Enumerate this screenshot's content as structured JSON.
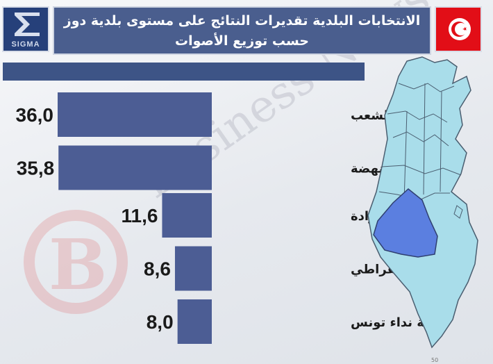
{
  "header": {
    "logo_text": "SIGMA",
    "title_line1": "الانتخابات البلدية تقديرات النتائج على مستوى بلدية دوز",
    "title_line2": "حسب توزيع الأصوات"
  },
  "watermark": {
    "text": "Business News"
  },
  "page_number": "50",
  "colors": {
    "bar": "#4c5d94",
    "header": "#4a5e8e",
    "flag_red": "#e20e17",
    "map_fill": "#a9ddea",
    "map_highlight": "#5b7fe0"
  },
  "chart_data": {
    "type": "bar",
    "orientation": "horizontal",
    "categories": [
      "حركة الشعب",
      "حركة النهضة",
      "حراك تونس الإرادة",
      "التيار الديمقراطي",
      "حركة نداء تونس"
    ],
    "values": [
      36.0,
      35.8,
      11.6,
      8.6,
      8.0
    ],
    "value_labels": [
      "36,0",
      "35,8",
      "11,6",
      "8,6",
      "8,0"
    ],
    "xlim": [
      0,
      36
    ]
  }
}
